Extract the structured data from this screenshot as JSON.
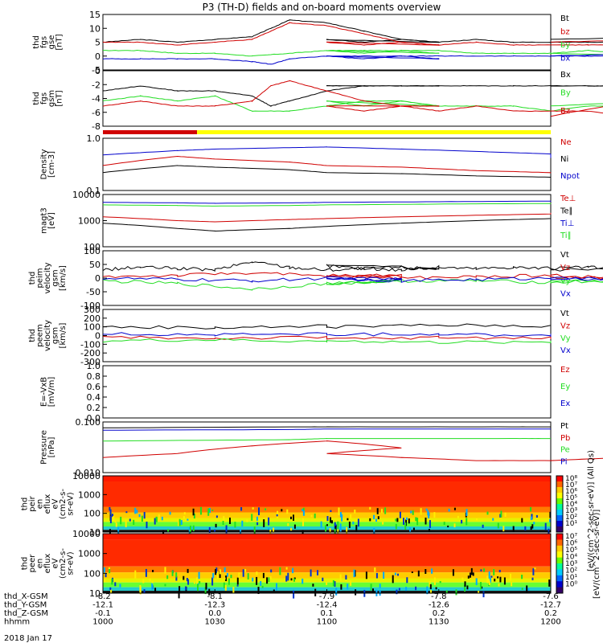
{
  "title": "P3 (TH-D) fields and on-board moments overview",
  "date": "2018 Jan 17",
  "colors": {
    "black": "#000000",
    "red": "#d00000",
    "green": "#22dd22",
    "blue": "#0000cc",
    "yellow": "#ffff00"
  },
  "chart_data": [
    {
      "id": "fgs_gse",
      "type": "line",
      "ylabel": [
        "thd",
        "fgs",
        "gse",
        "[nT]"
      ],
      "ylim": [
        -5,
        15
      ],
      "yticks": [
        "15",
        "10",
        "5",
        "0",
        "-5"
      ],
      "series": [
        {
          "name": "Bt",
          "color": "#000000",
          "x": [
            1000,
            1010,
            1020,
            1030,
            1040,
            1045,
            1050,
            1060,
            1070,
            1080,
            1090,
            1100,
            1110,
            1120,
            1130,
            1140,
            1150,
            1160,
            1170,
            1180,
            1190,
            1200
          ],
          "y": [
            5,
            6,
            5,
            6,
            7,
            10,
            13,
            12,
            9,
            6,
            5,
            6,
            5,
            6,
            5,
            6,
            5,
            5,
            5,
            5,
            7,
            6
          ]
        },
        {
          "name": "bz",
          "color": "#d00000",
          "x": [
            1000,
            1010,
            1020,
            1030,
            1040,
            1045,
            1050,
            1060,
            1070,
            1080,
            1090,
            1100,
            1110,
            1120,
            1130,
            1140,
            1150,
            1160,
            1170,
            1180,
            1190,
            1200
          ],
          "y": [
            5,
            5,
            4,
            5,
            6,
            9,
            12,
            11,
            8,
            5,
            4,
            5,
            4,
            5,
            4,
            5,
            4,
            4,
            4,
            4,
            6,
            5
          ]
        },
        {
          "name": "by",
          "color": "#22dd22",
          "x": [
            1000,
            1010,
            1020,
            1030,
            1040,
            1050,
            1060,
            1070,
            1080,
            1090,
            1100,
            1110,
            1120,
            1130,
            1140,
            1150,
            1160,
            1170,
            1180,
            1190,
            1200
          ],
          "y": [
            2,
            2,
            1,
            1,
            0,
            1,
            2,
            2,
            2,
            1,
            2,
            1,
            2,
            2,
            1,
            1,
            1,
            2,
            1,
            0,
            1
          ]
        },
        {
          "name": "bx",
          "color": "#0000cc",
          "x": [
            1000,
            1010,
            1020,
            1030,
            1040,
            1045,
            1050,
            1060,
            1070,
            1080,
            1090,
            1100,
            1110,
            1120,
            1130,
            1140,
            1150,
            1160,
            1170,
            1180,
            1190,
            1200
          ],
          "y": [
            -1,
            -1,
            -1,
            -1,
            -2,
            -3,
            -1,
            0,
            0,
            0,
            -1,
            0,
            -1,
            0,
            0,
            0,
            0,
            0,
            0,
            0,
            1,
            0
          ]
        }
      ]
    },
    {
      "id": "fgs_gsm",
      "type": "line",
      "ylabel": [
        "thd",
        "fgs",
        "gsm",
        "[nT]"
      ],
      "ylim": [
        -9,
        2
      ],
      "yticks": [
        "0",
        "-2",
        "-4",
        "-6",
        "-8"
      ],
      "series": [
        {
          "name": "Bx",
          "color": "#000000",
          "x": [
            1000,
            1010,
            1020,
            1030,
            1040,
            1045,
            1050,
            1060,
            1070,
            1080,
            1090,
            1100,
            1110,
            1120,
            1130,
            1140,
            1150,
            1160,
            1170,
            1180,
            1190,
            1200
          ],
          "y": [
            -2,
            -1,
            -2,
            -2,
            -3,
            -5,
            -4,
            -2,
            -1,
            -1,
            -1,
            -1,
            -1,
            -1,
            -1,
            -1,
            -1,
            -1,
            -1,
            -1,
            -1,
            -1
          ]
        },
        {
          "name": "By",
          "color": "#22dd22",
          "x": [
            1000,
            1010,
            1020,
            1030,
            1040,
            1050,
            1060,
            1070,
            1080,
            1090,
            1100,
            1110,
            1120,
            1130,
            1140,
            1150,
            1160,
            1170,
            1180,
            1190,
            1200
          ],
          "y": [
            -4,
            -3,
            -4,
            -3,
            -6,
            -6,
            -5,
            -4,
            -4,
            -5,
            -4,
            -5,
            -4,
            -5,
            -5,
            -5,
            -6,
            -5,
            -5,
            -4,
            -5
          ]
        },
        {
          "name": "Bz",
          "color": "#d00000",
          "x": [
            1000,
            1010,
            1020,
            1030,
            1040,
            1045,
            1050,
            1060,
            1070,
            1080,
            1090,
            1100,
            1110,
            1120,
            1130,
            1140,
            1150,
            1160,
            1170,
            1180,
            1190,
            1200
          ],
          "y": [
            -5,
            -4,
            -5,
            -5,
            -4,
            -1,
            0,
            -2,
            -4,
            -5,
            -5,
            -5,
            -6,
            -5,
            -6,
            -5,
            -6,
            -6,
            -6,
            -7,
            -3,
            -7
          ]
        }
      ]
    },
    {
      "id": "density",
      "type": "line",
      "scale": "log",
      "ylabel": [
        "Density",
        "[cm-3]"
      ],
      "ylim": [
        0.1,
        1.0
      ],
      "yticks": [
        "1.0",
        "0.1"
      ],
      "series": [
        {
          "name": "Ne",
          "color": "#d00000",
          "x": [
            1000,
            1020,
            1030,
            1050,
            1100,
            1120,
            1140,
            1160,
            1200
          ],
          "y": [
            0.3,
            0.45,
            0.4,
            0.35,
            0.3,
            0.28,
            0.24,
            0.22,
            0.22
          ]
        },
        {
          "name": "Ni",
          "color": "#000000",
          "x": [
            1000,
            1020,
            1030,
            1050,
            1100,
            1120,
            1140,
            1160,
            1200
          ],
          "y": [
            0.22,
            0.3,
            0.28,
            0.25,
            0.22,
            0.21,
            0.19,
            0.18,
            0.17
          ]
        },
        {
          "name": "Npot",
          "color": "#0000cc",
          "x": [
            1000,
            1020,
            1030,
            1050,
            1100,
            1120,
            1140,
            1160,
            1200
          ],
          "y": [
            0.48,
            0.58,
            0.62,
            0.66,
            0.68,
            0.62,
            0.56,
            0.5,
            0.42
          ]
        }
      ]
    },
    {
      "id": "magt3",
      "type": "line",
      "scale": "log",
      "ylabel": [
        "magt3",
        "[eV]"
      ],
      "ylim": [
        100,
        10000
      ],
      "yticks": [
        "10000",
        "1000",
        "100"
      ],
      "series": [
        {
          "name": "Te⊥",
          "color": "#d00000",
          "x": [
            1000,
            1020,
            1030,
            1050,
            1100,
            1120,
            1140,
            1160,
            1200
          ],
          "y": [
            1400,
            1000,
            900,
            1100,
            1200,
            1400,
            1600,
            1800,
            2000
          ]
        },
        {
          "name": "Te∥",
          "color": "#000000",
          "x": [
            1000,
            1020,
            1030,
            1050,
            1100,
            1120,
            1140,
            1160,
            1200
          ],
          "y": [
            800,
            500,
            400,
            500,
            600,
            800,
            1000,
            1200,
            1400
          ]
        },
        {
          "name": "Ti⊥",
          "color": "#0000cc",
          "x": [
            1000,
            1020,
            1030,
            1050,
            1100,
            1120,
            1140,
            1160,
            1200
          ],
          "y": [
            5000,
            4800,
            4600,
            4800,
            5000,
            5200,
            5400,
            5600,
            5400
          ]
        },
        {
          "name": "Ti∥",
          "color": "#22dd22",
          "x": [
            1000,
            1020,
            1030,
            1050,
            1100,
            1120,
            1140,
            1160,
            1200
          ],
          "y": [
            4000,
            3800,
            3600,
            3800,
            4000,
            4200,
            4400,
            4500,
            4400
          ]
        }
      ]
    },
    {
      "id": "peim_velocity",
      "type": "line",
      "ylabel": [
        "thd",
        "peim",
        "velocity",
        "gsm",
        "[km/s]"
      ],
      "ylim": [
        -100,
        100
      ],
      "yticks": [
        "100",
        "50",
        "0",
        "-50",
        "-100"
      ],
      "series": [
        {
          "name": "Vt",
          "color": "#000000",
          "x": [
            1000,
            1010,
            1020,
            1030,
            1040,
            1050,
            1060,
            1070,
            1080,
            1090,
            1100,
            1110,
            1120,
            1130,
            1140,
            1150,
            1160,
            1170,
            1180,
            1190,
            1200
          ],
          "y": [
            30,
            40,
            35,
            30,
            60,
            40,
            30,
            35,
            40,
            35,
            45,
            35,
            30,
            40,
            35,
            40,
            35,
            40,
            30,
            35,
            30
          ]
        },
        {
          "name": "Vz",
          "color": "#d00000",
          "x": [
            1000,
            1020,
            1040,
            1060,
            1080,
            1100,
            1120,
            1140,
            1160,
            1180,
            1200
          ],
          "y": [
            5,
            10,
            20,
            5,
            10,
            10,
            0,
            5,
            10,
            0,
            5
          ]
        },
        {
          "name": "Vy",
          "color": "#22dd22",
          "x": [
            1000,
            1020,
            1040,
            1060,
            1080,
            1100,
            1120,
            1140,
            1160,
            1180,
            1200
          ],
          "y": [
            -10,
            -20,
            -40,
            -20,
            -10,
            -20,
            -10,
            -10,
            -15,
            -10,
            -10
          ]
        },
        {
          "name": "Vx",
          "color": "#0000cc",
          "x": [
            1000,
            1020,
            1040,
            1060,
            1080,
            1100,
            1120,
            1140,
            1160,
            1180,
            1200
          ],
          "y": [
            0,
            -5,
            -10,
            0,
            -5,
            0,
            -10,
            -5,
            0,
            -5,
            0
          ]
        }
      ]
    },
    {
      "id": "peem_velocity",
      "type": "line",
      "ylabel": [
        "thd",
        "peem",
        "velocity",
        "gsm",
        "[km/s]"
      ],
      "ylim": [
        -300,
        300
      ],
      "yticks": [
        "300",
        "200",
        "100",
        "0",
        "-100",
        "-200",
        "-300"
      ],
      "series": [
        {
          "name": "Vt",
          "color": "#000000",
          "x": [
            1000,
            1030,
            1060,
            1100,
            1130,
            1160,
            1200
          ],
          "y": [
            100,
            90,
            110,
            100,
            120,
            110,
            120
          ]
        },
        {
          "name": "Vz",
          "color": "#d00000",
          "x": [
            1000,
            1030,
            1060,
            1100,
            1130,
            1160,
            1200
          ],
          "y": [
            -20,
            -30,
            -20,
            -40,
            -20,
            -30,
            -20
          ]
        },
        {
          "name": "Vy",
          "color": "#22dd22",
          "x": [
            1000,
            1030,
            1060,
            1100,
            1130,
            1160,
            1200
          ],
          "y": [
            -60,
            -50,
            -70,
            -60,
            -80,
            -70,
            -60
          ]
        },
        {
          "name": "Vx",
          "color": "#0000cc",
          "x": [
            1000,
            1030,
            1060,
            1100,
            1130,
            1160,
            1200
          ],
          "y": [
            20,
            10,
            20,
            10,
            20,
            0,
            10
          ]
        }
      ]
    },
    {
      "id": "e_field",
      "type": "line",
      "ylabel": [
        "E=-VxB",
        "[mV/m]"
      ],
      "ylim": [
        0,
        1.0
      ],
      "yticks": [
        "1.0",
        "0.8",
        "0.6",
        "0.4",
        "0.2",
        "0.0"
      ],
      "series": [
        {
          "name": "Ez",
          "color": "#d00000",
          "x": [],
          "y": []
        },
        {
          "name": "Ey",
          "color": "#22dd22",
          "x": [],
          "y": []
        },
        {
          "name": "Ex",
          "color": "#0000cc",
          "x": [],
          "y": []
        }
      ]
    },
    {
      "id": "pressure",
      "type": "line",
      "scale": "log",
      "ylabel": [
        "Pressure",
        "[nPa]"
      ],
      "ylim": [
        0.005,
        0.2
      ],
      "yticks": [
        "0.100",
        "0.010"
      ],
      "series": [
        {
          "name": "Pt",
          "color": "#000000",
          "x": [
            1000,
            1050,
            1100,
            1150,
            1200
          ],
          "y": [
            0.13,
            0.14,
            0.14,
            0.14,
            0.14
          ]
        },
        {
          "name": "Pb",
          "color": "#d00000",
          "x": [
            1000,
            1020,
            1040,
            1060,
            1080,
            1100,
            1120,
            1140,
            1160,
            1180,
            1200
          ],
          "y": [
            0.015,
            0.02,
            0.035,
            0.05,
            0.03,
            0.02,
            0.015,
            0.012,
            0.012,
            0.015,
            0.012
          ]
        },
        {
          "name": "Pe",
          "color": "#22dd22",
          "x": [
            1000,
            1050,
            1100,
            1150,
            1200
          ],
          "y": [
            0.05,
            0.055,
            0.06,
            0.06,
            0.06
          ]
        },
        {
          "name": "Pi",
          "color": "#0000cc",
          "x": [
            1000,
            1050,
            1100,
            1150,
            1200
          ],
          "y": [
            0.11,
            0.115,
            0.12,
            0.12,
            0.12
          ]
        }
      ]
    },
    {
      "id": "peir_spec",
      "type": "heatmap",
      "ylabel": [
        "thd",
        "peir",
        "en",
        "eflux",
        "eV",
        "(cm2-s-",
        "sr-eV)"
      ],
      "yticks": [
        "10000",
        "1000",
        "100",
        "10"
      ]
    },
    {
      "id": "peer_spec",
      "type": "heatmap",
      "ylabel": [
        "thd",
        "peer",
        "en",
        "eflux",
        "eV",
        "(cm2-s-",
        "sr-eV)"
      ],
      "yticks": [
        "10000",
        "1000",
        "100",
        "10"
      ]
    }
  ],
  "colorbar1": {
    "label": "[eV/(cm^2-sec-sr-eV)] (All Qs)",
    "ticks": [
      "10⁸",
      "10⁷",
      "10⁶",
      "10⁵",
      "10⁴",
      "10³",
      "10²",
      "10¹"
    ]
  },
  "colorbar2": {
    "label": "[eV/(cm^2-sec-sr-eV)]",
    "ticks": [
      "10⁷",
      "10⁶",
      "10⁵",
      "10⁴",
      "10³",
      "10²",
      "10¹",
      "10⁰"
    ]
  },
  "ephem": {
    "labels": [
      "thd_X-GSM",
      "thd_Y-GSM",
      "thd_Z-GSM",
      "hhmm"
    ],
    "cols": [
      [
        "-8.2",
        "-12.1",
        "-0.1",
        "1000"
      ],
      [
        "-8.1",
        "-12.3",
        "0.0",
        "1030"
      ],
      [
        "-7.9",
        "-12.4",
        "0.1",
        "1100"
      ],
      [
        "-7.8",
        "-12.6",
        "0.2",
        "1130"
      ],
      [
        "-7.6",
        "-12.7",
        "0.2",
        "1200"
      ]
    ]
  }
}
